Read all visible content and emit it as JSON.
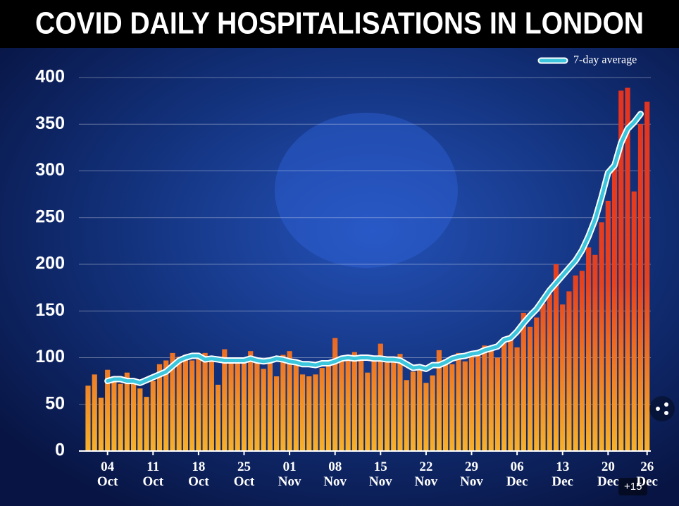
{
  "chart_data": {
    "type": "bar",
    "title": "COVID DAILY HOSPITALISATIONS IN LONDON",
    "categories": [
      null,
      null,
      null,
      "04\nOct",
      null,
      null,
      null,
      null,
      null,
      null,
      "11\nOct",
      null,
      null,
      null,
      null,
      null,
      null,
      "18\nOct",
      null,
      null,
      null,
      null,
      null,
      null,
      "25\nOct",
      null,
      null,
      null,
      null,
      null,
      null,
      "01\nNov",
      null,
      null,
      null,
      null,
      null,
      null,
      "08\nNov",
      null,
      null,
      null,
      null,
      null,
      null,
      "15\nNov",
      null,
      null,
      null,
      null,
      null,
      null,
      "22\nNov",
      null,
      null,
      null,
      null,
      null,
      null,
      "29\nNov",
      null,
      null,
      null,
      null,
      null,
      null,
      "06\nDec",
      null,
      null,
      null,
      null,
      null,
      null,
      "13\nDec",
      null,
      null,
      null,
      null,
      null,
      null,
      "20\nDec",
      null,
      null,
      null,
      null,
      null,
      "26\nDec"
    ],
    "series": [
      {
        "type": "bar",
        "color": "#e3321f",
        "values": [
          70,
          82,
          57,
          87,
          80,
          72,
          84,
          77,
          67,
          58,
          75,
          93,
          97,
          105,
          101,
          103,
          97,
          100,
          105,
          98,
          71,
          109,
          96,
          97,
          100,
          107,
          96,
          88,
          99,
          80,
          103,
          107,
          95,
          82,
          80,
          82,
          89,
          96,
          121,
          101,
          100,
          106,
          102,
          84,
          102,
          115,
          95,
          101,
          104,
          76,
          85,
          90,
          73,
          81,
          108,
          98,
          93,
          105,
          96,
          104,
          103,
          113,
          109,
          100,
          117,
          124,
          111,
          148,
          133,
          143,
          158,
          168,
          200,
          157,
          171,
          188,
          193,
          218,
          210,
          245,
          268,
          305,
          386,
          389,
          278,
          350,
          374
        ]
      },
      {
        "type": "line",
        "name": "7-day average",
        "color": "#3cc6dd",
        "values": [
          null,
          null,
          null,
          75,
          77,
          77,
          75,
          75,
          73,
          76,
          79,
          82,
          85,
          91,
          97,
          100,
          102,
          102,
          98,
          99,
          98,
          97,
          97,
          97,
          97,
          99,
          97,
          96,
          97,
          99,
          98,
          96,
          95,
          93,
          93,
          92,
          94,
          94,
          96,
          99,
          100,
          99,
          100,
          100,
          99,
          99,
          98,
          98,
          97,
          93,
          89,
          90,
          88,
          92,
          92,
          95,
          99,
          101,
          102,
          104,
          105,
          108,
          110,
          112,
          119,
          121,
          128,
          137,
          145,
          152,
          162,
          172,
          180,
          188,
          196,
          204,
          215,
          230,
          248,
          272,
          298,
          306,
          330,
          345,
          352,
          361,
          null
        ]
      }
    ],
    "ylim": [
      0,
      400
    ],
    "yticks": [
      0,
      50,
      100,
      150,
      200,
      250,
      300,
      350,
      400
    ],
    "grid": true,
    "legend": "top-right"
  },
  "gallery_count": "+15"
}
